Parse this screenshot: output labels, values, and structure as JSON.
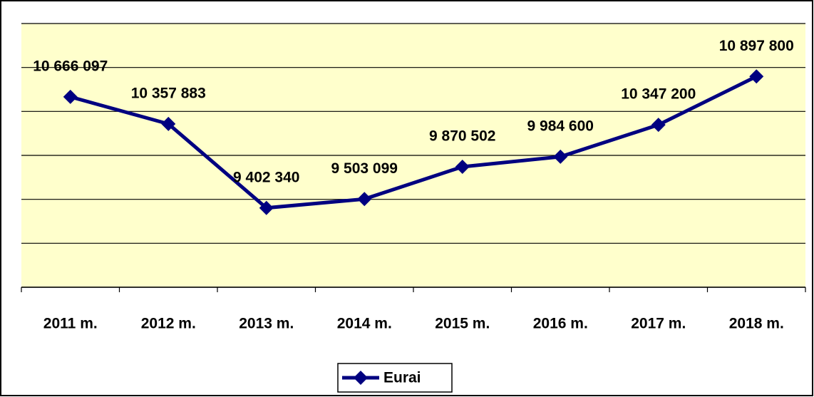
{
  "chart_data": {
    "type": "line",
    "categories": [
      "2011 m.",
      "2012 m.",
      "2013 m.",
      "2014 m.",
      "2015 m.",
      "2016 m.",
      "2017 m.",
      "2018 m."
    ],
    "series": [
      {
        "name": "Eurai",
        "color": "#000080",
        "values": [
          10666097,
          10357883,
          9402340,
          9503099,
          9870502,
          9984600,
          10347200,
          10897800
        ],
        "value_labels": [
          "10 666 097",
          "10 357 883",
          "9 402 340",
          "9 503 099",
          "9 870 502",
          "9 984 600",
          "10 347 200",
          "10 897 800"
        ]
      }
    ],
    "ylim": [
      8500000,
      11500000
    ],
    "yticks": [
      8500000,
      9000000,
      9500000,
      10000000,
      10500000,
      11000000,
      11500000
    ],
    "grid": true,
    "legend": "bottom"
  }
}
